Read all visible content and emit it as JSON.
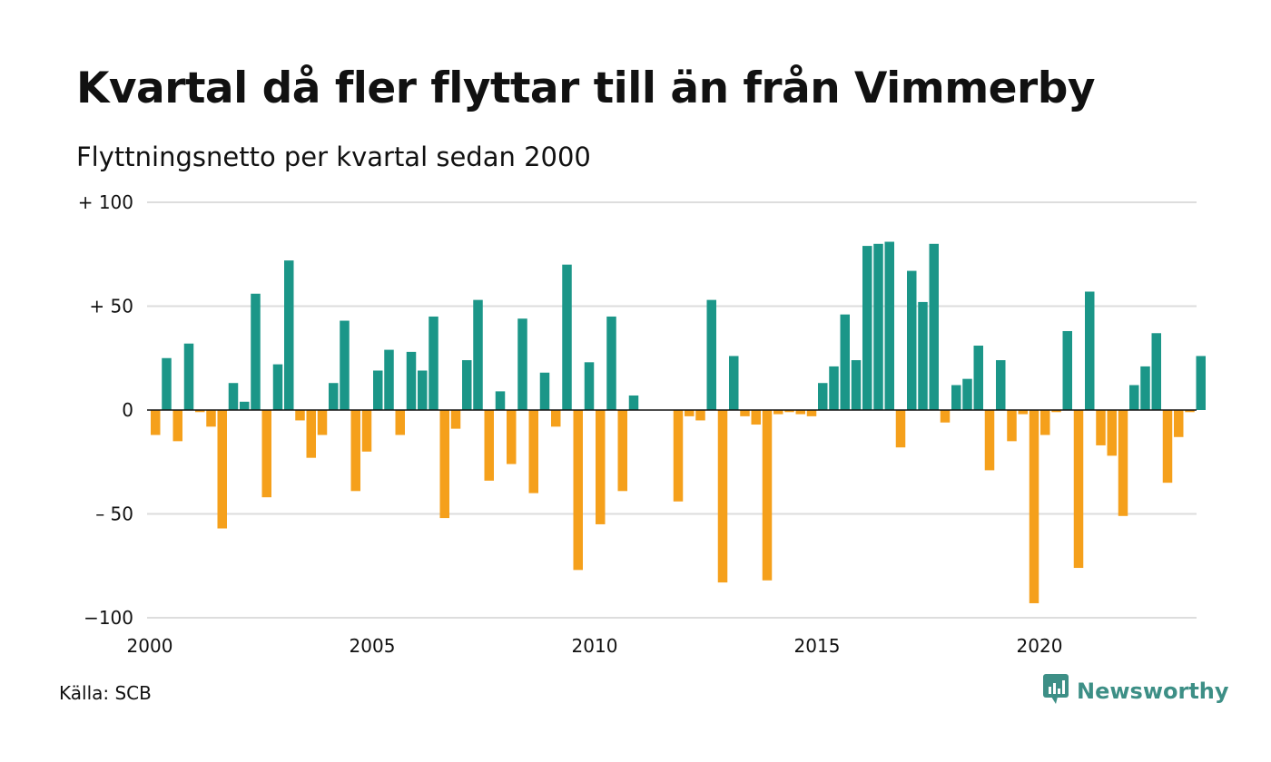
{
  "title": "Kvartal då fler flyttar till än från Vimmerby",
  "subtitle": "Flyttningsnetto per kvartal sedan 2000",
  "source": "Källa: SCB",
  "brand": "Newsworthy",
  "icons": {
    "logo": "newsworthy-logo-icon"
  },
  "colors": {
    "positive": "#1b9688",
    "negative": "#f5a01b",
    "brand": "#3d8f86",
    "grid": "#dddddd"
  },
  "chart_data": {
    "type": "bar",
    "y_tick_values": [
      100,
      50,
      0,
      -50,
      -100
    ],
    "y_tick_labels": [
      "+ 100",
      "+  50",
      "0",
      "– 50",
      "−100"
    ],
    "ylim": [
      -100,
      100
    ],
    "x_tick_labels": [
      "2000",
      "2005",
      "2010",
      "2015",
      "2020"
    ],
    "grid": true,
    "legend": "none",
    "categories": [
      "2000 Q1",
      "2000 Q2",
      "2000 Q3",
      "2000 Q4",
      "2001 Q1",
      "2001 Q2",
      "2001 Q3",
      "2001 Q4",
      "2002 Q1",
      "2002 Q2",
      "2002 Q3",
      "2002 Q4",
      "2003 Q1",
      "2003 Q2",
      "2003 Q3",
      "2003 Q4",
      "2004 Q1",
      "2004 Q2",
      "2004 Q3",
      "2004 Q4",
      "2005 Q1",
      "2005 Q2",
      "2005 Q3",
      "2005 Q4",
      "2006 Q1",
      "2006 Q2",
      "2006 Q3",
      "2006 Q4",
      "2007 Q1",
      "2007 Q2",
      "2007 Q3",
      "2007 Q4",
      "2008 Q1",
      "2008 Q2",
      "2008 Q3",
      "2008 Q4",
      "2009 Q1",
      "2009 Q2",
      "2009 Q3",
      "2009 Q4",
      "2010 Q1",
      "2010 Q2",
      "2010 Q3",
      "2010 Q4",
      "2011 Q1",
      "2011 Q2",
      "2011 Q3",
      "2011 Q4",
      "2012 Q1",
      "2012 Q2",
      "2012 Q3",
      "2012 Q4",
      "2013 Q1",
      "2013 Q2",
      "2013 Q3",
      "2013 Q4",
      "2014 Q1",
      "2014 Q2",
      "2014 Q3",
      "2014 Q4",
      "2015 Q1",
      "2015 Q2",
      "2015 Q3",
      "2015 Q4",
      "2016 Q1",
      "2016 Q2",
      "2016 Q3",
      "2016 Q4",
      "2017 Q1",
      "2017 Q2",
      "2017 Q3",
      "2017 Q4",
      "2018 Q1",
      "2018 Q2",
      "2018 Q3",
      "2018 Q4",
      "2019 Q1",
      "2019 Q2",
      "2019 Q3",
      "2019 Q4",
      "2020 Q1",
      "2020 Q2",
      "2020 Q3",
      "2020 Q4",
      "2021 Q1",
      "2021 Q2",
      "2021 Q3",
      "2021 Q4",
      "2022 Q1",
      "2022 Q2",
      "2022 Q3",
      "2022 Q4",
      "2023 Q1",
      "2023 Q2",
      "2023 Q3",
      "2023 Q4"
    ],
    "values": [
      -12,
      25,
      -15,
      32,
      -1,
      -8,
      -57,
      13,
      4,
      56,
      -42,
      22,
      72,
      -5,
      -23,
      -12,
      13,
      43,
      -39,
      -20,
      19,
      29,
      -12,
      28,
      19,
      45,
      -52,
      -9,
      24,
      53,
      -34,
      9,
      -26,
      44,
      -40,
      18,
      -8,
      70,
      -77,
      23,
      -55,
      45,
      -39,
      7,
      0,
      0,
      0,
      -44,
      -3,
      -5,
      53,
      -83,
      26,
      -3,
      -7,
      -82,
      -2,
      -1,
      -2,
      -3,
      13,
      21,
      46,
      24,
      79,
      80,
      81,
      -18,
      67,
      52,
      80,
      -6,
      12,
      15,
      31,
      -29,
      24,
      -15,
      -2,
      -93,
      -12,
      -1,
      38,
      -76,
      57,
      -17,
      -22,
      -51,
      12,
      21,
      37,
      -35,
      -13,
      -1,
      26,
      0
    ]
  }
}
